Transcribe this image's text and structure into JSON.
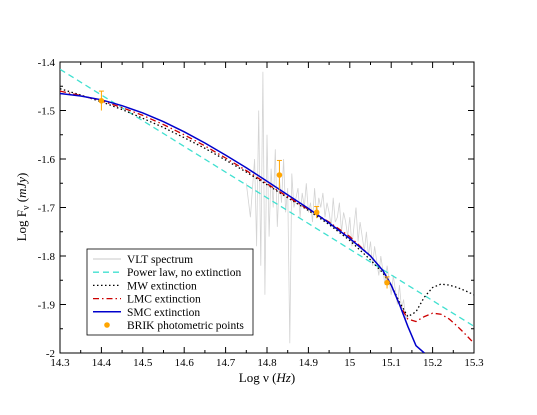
{
  "chart_data": {
    "type": "line",
    "title": "",
    "xlabel": {
      "prefix": "Log ν (",
      "unit": "Hz",
      "suffix": ")"
    },
    "ylabel": {
      "prefix": "Log F",
      "sub": "ν",
      "unit": "mJy"
    },
    "xlim": [
      14.3,
      15.3
    ],
    "ylim": [
      -2.0,
      -1.4
    ],
    "x_ticks": [
      "14.3",
      "14.4",
      "14.5",
      "14.6",
      "14.7",
      "14.8",
      "14.9",
      "15",
      "15.1",
      "15.2",
      "15.3"
    ],
    "y_ticks": [
      "-2",
      "-1.9",
      "-1.8",
      "-1.7",
      "-1.6",
      "-1.5",
      "-1.4"
    ],
    "grid": false,
    "legend_position": "bottom-left",
    "series": [
      {
        "name": "VLT spectrum",
        "color": "#d3d3d3",
        "style": "solid-noisy",
        "x": [
          14.75,
          14.76,
          14.77,
          14.775,
          14.78,
          14.785,
          14.79,
          14.795,
          14.8,
          14.805,
          14.81,
          14.815,
          14.82,
          14.825,
          14.83,
          14.835,
          14.84,
          14.845,
          14.85,
          14.855,
          14.86,
          14.865,
          14.87,
          14.875,
          14.88,
          14.885,
          14.89,
          14.895,
          14.9,
          14.905,
          14.91,
          14.915,
          14.92,
          14.925,
          14.93,
          14.935,
          14.94,
          14.945,
          14.95,
          14.955,
          14.96,
          14.965,
          14.97,
          14.975,
          14.98,
          14.985,
          14.99,
          14.995,
          15.0,
          15.005,
          15.01,
          15.015,
          15.02,
          15.025,
          15.03,
          15.035,
          15.04,
          15.045,
          15.05,
          15.055,
          15.06,
          15.065,
          15.07,
          15.075,
          15.08,
          15.085,
          15.09,
          15.095,
          15.1,
          15.105,
          15.11,
          15.115,
          15.12,
          15.125,
          15.13,
          15.135,
          15.14
        ],
        "y": [
          -1.65,
          -1.72,
          -1.6,
          -1.78,
          -1.5,
          -1.82,
          -1.42,
          -1.88,
          -1.55,
          -1.76,
          -1.62,
          -1.7,
          -1.58,
          -1.74,
          -1.64,
          -1.69,
          -1.6,
          -1.71,
          -1.66,
          -1.98,
          -1.63,
          -1.7,
          -1.68,
          -1.66,
          -1.72,
          -1.67,
          -1.7,
          -1.65,
          -1.71,
          -1.69,
          -1.73,
          -1.66,
          -1.72,
          -1.68,
          -1.7,
          -1.67,
          -1.72,
          -1.69,
          -1.71,
          -1.74,
          -1.68,
          -1.73,
          -1.72,
          -1.69,
          -1.75,
          -1.71,
          -1.73,
          -1.76,
          -1.72,
          -1.78,
          -1.74,
          -1.7,
          -1.77,
          -1.73,
          -1.76,
          -1.79,
          -1.75,
          -1.8,
          -1.77,
          -1.82,
          -1.78,
          -1.81,
          -1.84,
          -1.8,
          -1.83,
          -1.86,
          -1.82,
          -1.85,
          -1.88,
          -1.84,
          -1.87,
          -1.9,
          -1.86,
          -1.91,
          -1.89,
          -1.93,
          -1.92
        ]
      },
      {
        "name": "Power law, no extinction",
        "color": "#40e0d0",
        "style": "dashed",
        "x": [
          14.3,
          15.3
        ],
        "y": [
          -1.415,
          -1.945
        ]
      },
      {
        "name": "MW extinction",
        "color": "#000000",
        "style": "dotted",
        "x": [
          14.3,
          14.35,
          14.4,
          14.45,
          14.5,
          14.55,
          14.6,
          14.65,
          14.7,
          14.75,
          14.8,
          14.85,
          14.9,
          14.95,
          15.0,
          15.05,
          15.08,
          15.1,
          15.12,
          15.14,
          15.16,
          15.18,
          15.2,
          15.22,
          15.24,
          15.26,
          15.28,
          15.3
        ],
        "y": [
          -1.455,
          -1.468,
          -1.482,
          -1.498,
          -1.516,
          -1.535,
          -1.556,
          -1.578,
          -1.602,
          -1.627,
          -1.653,
          -1.68,
          -1.706,
          -1.735,
          -1.768,
          -1.808,
          -1.835,
          -1.86,
          -1.895,
          -1.925,
          -1.915,
          -1.885,
          -1.865,
          -1.858,
          -1.86,
          -1.865,
          -1.872,
          -1.88
        ]
      },
      {
        "name": "LMC extinction",
        "color": "#cc0000",
        "style": "dashdot",
        "x": [
          14.3,
          14.35,
          14.4,
          14.45,
          14.5,
          14.55,
          14.6,
          14.65,
          14.7,
          14.75,
          14.8,
          14.85,
          14.9,
          14.95,
          15.0,
          15.05,
          15.08,
          15.1,
          15.12,
          15.14,
          15.16,
          15.18,
          15.2,
          15.22,
          15.24,
          15.26,
          15.28,
          15.3
        ],
        "y": [
          -1.46,
          -1.469,
          -1.48,
          -1.494,
          -1.51,
          -1.529,
          -1.55,
          -1.573,
          -1.598,
          -1.624,
          -1.651,
          -1.678,
          -1.704,
          -1.73,
          -1.76,
          -1.8,
          -1.83,
          -1.86,
          -1.9,
          -1.93,
          -1.935,
          -1.925,
          -1.918,
          -1.92,
          -1.93,
          -1.945,
          -1.962,
          -1.98
        ]
      },
      {
        "name": "SMC extinction",
        "color": "#0000cc",
        "style": "solid",
        "x": [
          14.3,
          14.35,
          14.4,
          14.45,
          14.5,
          14.55,
          14.6,
          14.65,
          14.7,
          14.75,
          14.8,
          14.85,
          14.9,
          14.95,
          15.0,
          15.05,
          15.08,
          15.1,
          15.12,
          15.14,
          15.16,
          15.18
        ],
        "y": [
          -1.465,
          -1.47,
          -1.478,
          -1.49,
          -1.505,
          -1.523,
          -1.544,
          -1.567,
          -1.592,
          -1.618,
          -1.646,
          -1.674,
          -1.702,
          -1.732,
          -1.764,
          -1.8,
          -1.83,
          -1.86,
          -1.9,
          -1.945,
          -1.985,
          -2.0
        ]
      }
    ],
    "points": {
      "name": "BRIK photometric points",
      "color": "#ffa500",
      "x": [
        14.4,
        14.83,
        14.92,
        15.09
      ],
      "y": [
        -1.48,
        -1.633,
        -1.71,
        -1.855
      ],
      "yerr": [
        0.02,
        0.03,
        0.012,
        0.012
      ]
    }
  }
}
